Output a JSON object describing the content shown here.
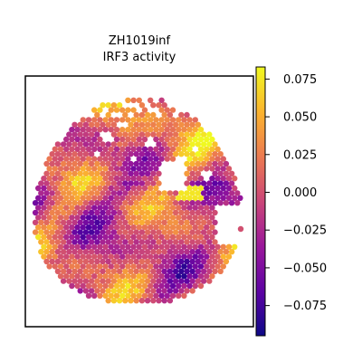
{
  "chart_data": {
    "type": "scatter",
    "title": [
      "ZH1019inf",
      "IRF3 activity"
    ],
    "xlabel": "",
    "ylabel": "",
    "axes_ticks_visible": false,
    "colormap": "plasma",
    "colormap_stops": [
      "#0d0887",
      "#5b02a3",
      "#9a179b",
      "#cb4678",
      "#eb7852",
      "#fbb32f",
      "#f0f921"
    ],
    "colorbar": {
      "range": [
        -0.095,
        0.083
      ],
      "ticks": [
        0.075,
        0.05,
        0.025,
        0.0,
        -0.025,
        -0.05,
        -0.075
      ],
      "tick_labels": [
        "0.075",
        "0.050",
        "0.025",
        "0.000",
        "−0.025",
        "−0.050",
        "−0.075"
      ]
    },
    "spot_summary": {
      "layout": "hexagonal spatial spots inside a roughly circular tissue section with a notch on the right side",
      "value_range": [
        -0.095,
        0.083
      ],
      "outlier_spot": "one isolated spot to the right of the section, around 0.0"
    }
  }
}
